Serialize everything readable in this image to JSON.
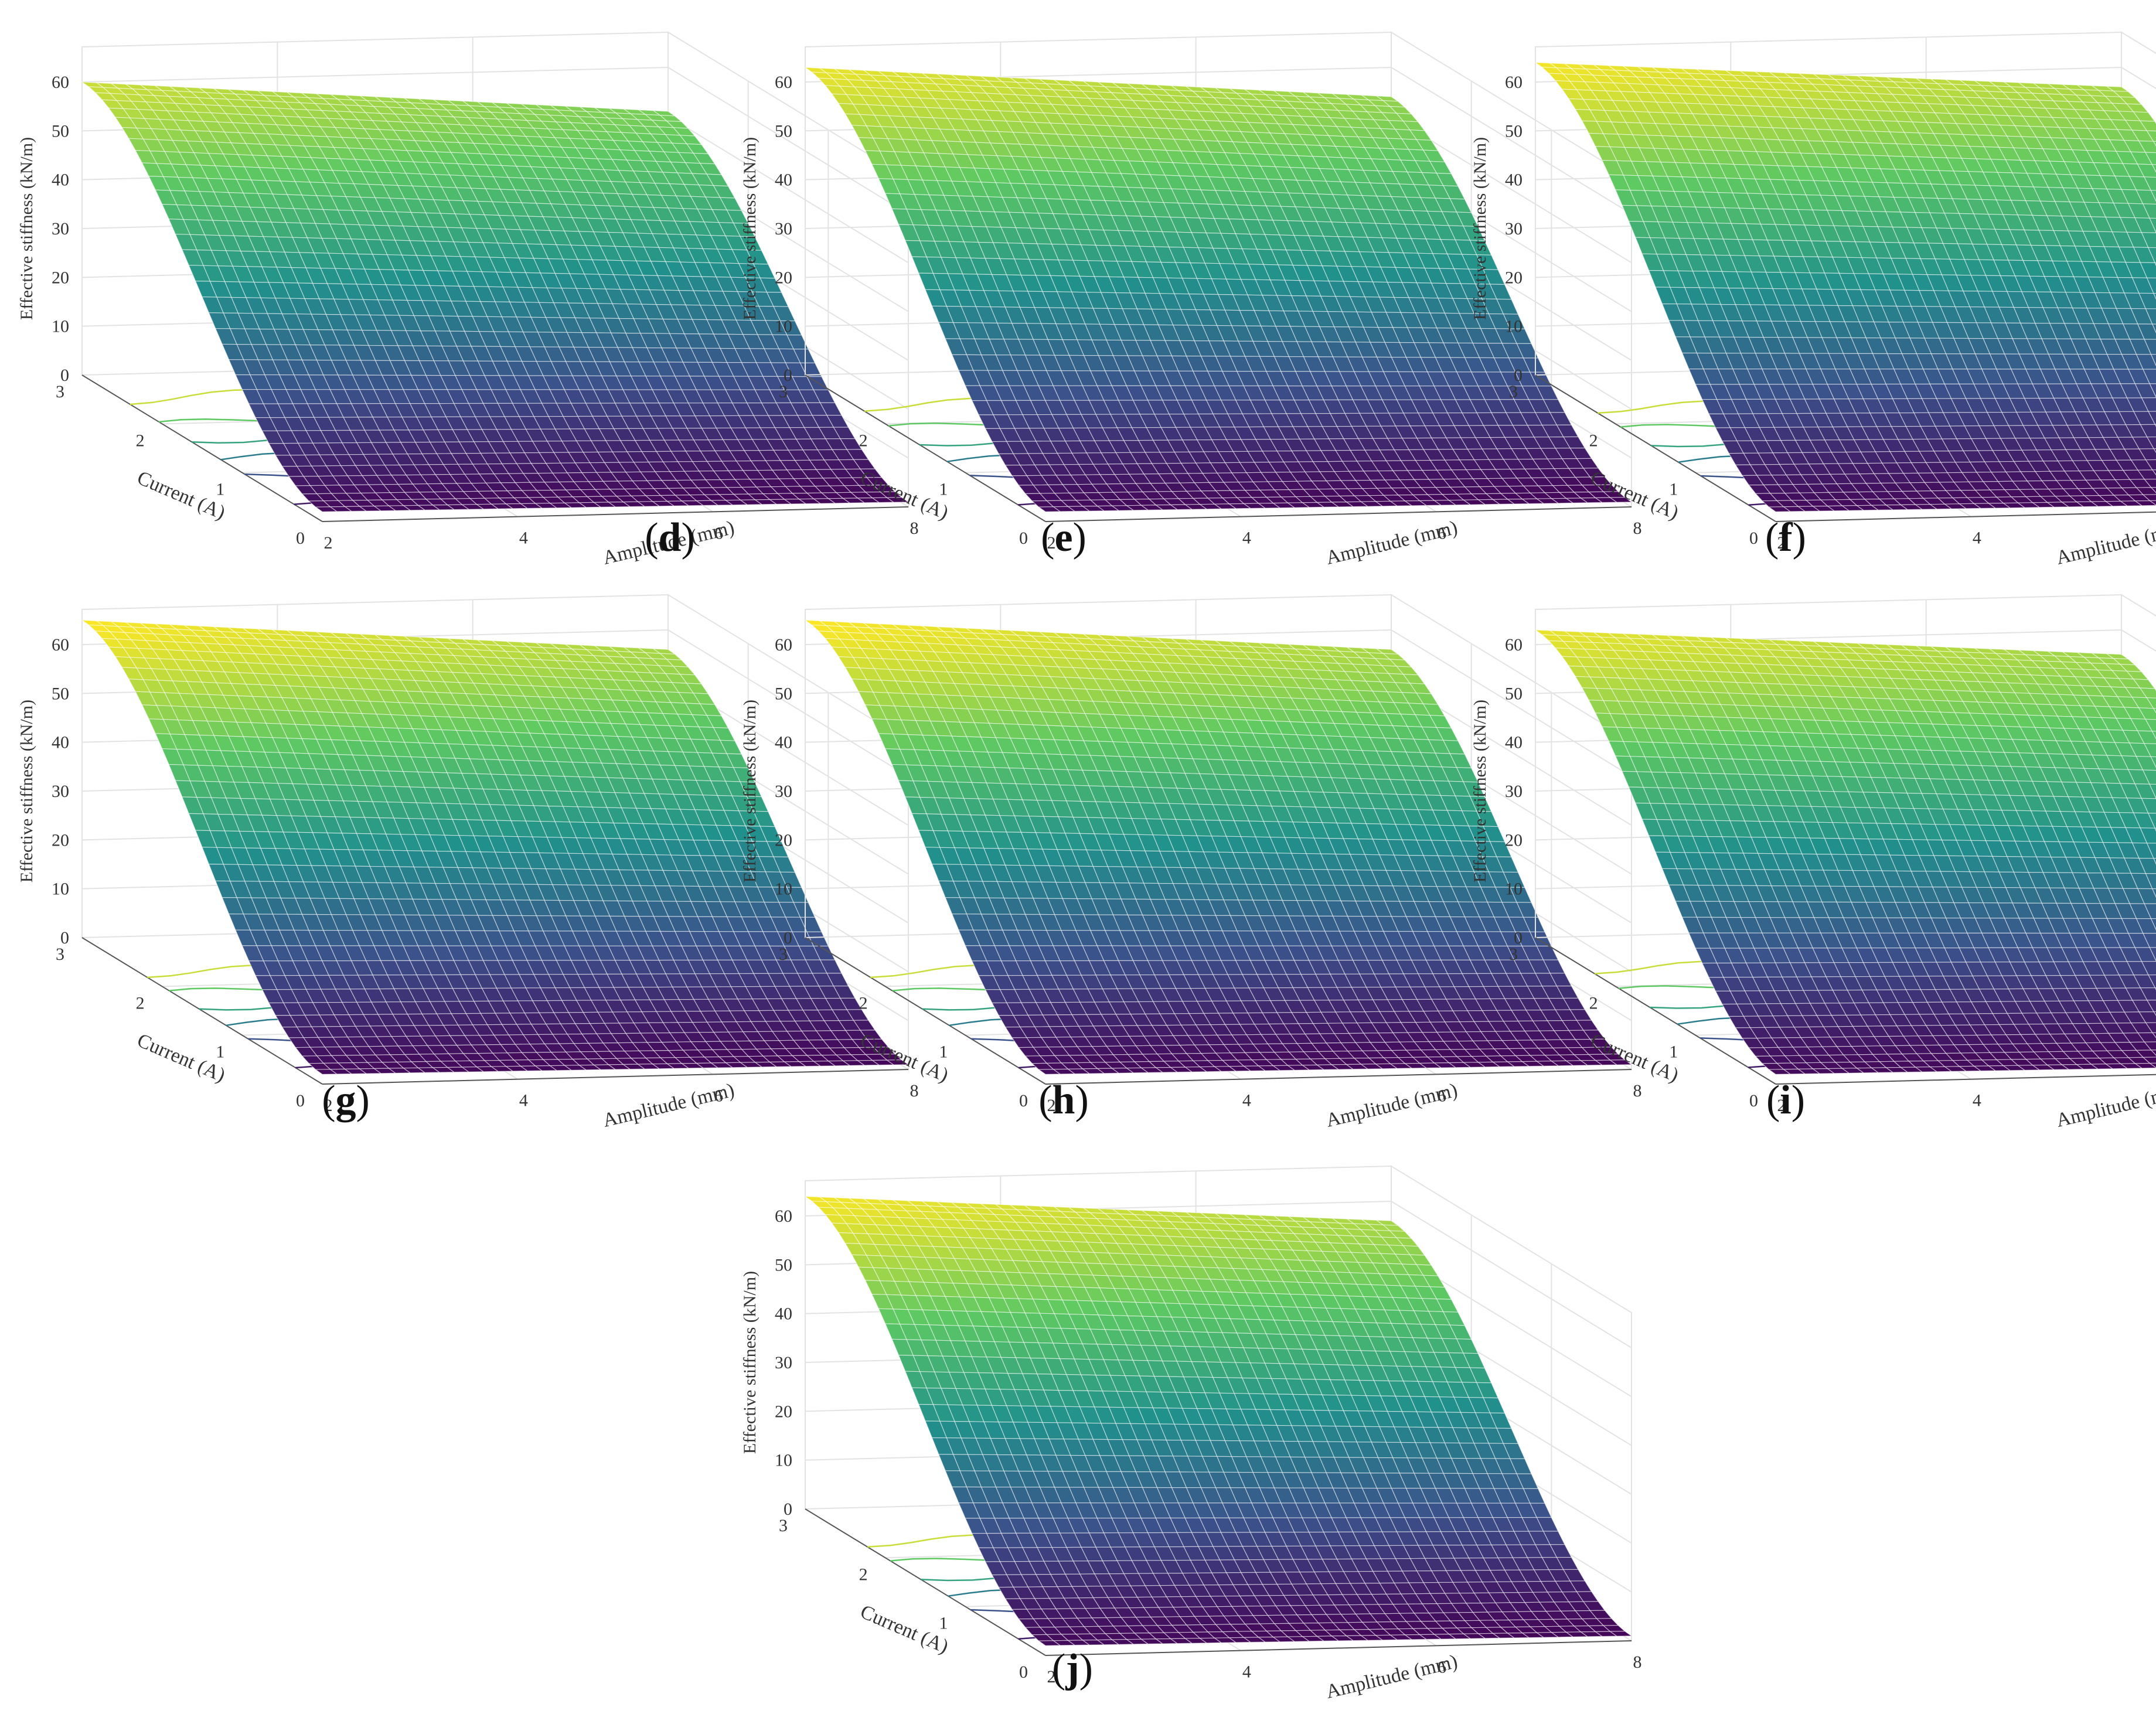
{
  "figure": {
    "panels": [
      {
        "id": "d",
        "panel_label": "d",
        "zmax_tick": 60
      },
      {
        "id": "e",
        "panel_label": "e",
        "zmax_tick": 60
      },
      {
        "id": "f",
        "panel_label": "f",
        "zmax_tick": 60
      },
      {
        "id": "g",
        "panel_label": "g",
        "zmax_tick": 60
      },
      {
        "id": "h",
        "panel_label": "h",
        "zmax_tick": 60
      },
      {
        "id": "i",
        "panel_label": "i",
        "zmax_tick": 60
      },
      {
        "id": "j",
        "panel_label": "j",
        "zmax_tick": 60
      }
    ]
  },
  "chart_data": {
    "type": "surface",
    "xlabel": "Amplitude (mm)",
    "ylabel": "Current (A)",
    "zlabel": "Effective stiffness (kN/m)",
    "xticks": [
      "2",
      "4",
      "6",
      "8"
    ],
    "yticks": [
      "0",
      "1",
      "2",
      "3"
    ],
    "zticks": [
      "0",
      "10",
      "20",
      "30",
      "40",
      "50",
      "60"
    ],
    "xlim": [
      2,
      8
    ],
    "ylim": [
      0,
      3
    ],
    "zlim": [
      0,
      60
    ],
    "grid": true,
    "colormap": [
      "#440154",
      "#3b528b",
      "#21918c",
      "#5ec962",
      "#fde725"
    ],
    "contours_projected_on_floor": true,
    "panels": [
      {
        "id": "d",
        "stiffness_at_corners_kN_per_m": {
          "A2_I3": 60,
          "A8_I3": 51,
          "A2_I0": 2,
          "A8_I0": 1
        }
      },
      {
        "id": "e",
        "stiffness_at_corners_kN_per_m": {
          "A2_I3": 63,
          "A8_I3": 54,
          "A2_I0": 2,
          "A8_I0": 1
        }
      },
      {
        "id": "f",
        "stiffness_at_corners_kN_per_m": {
          "A2_I3": 64,
          "A8_I3": 56,
          "A2_I0": 2,
          "A8_I0": 1
        }
      },
      {
        "id": "g",
        "stiffness_at_corners_kN_per_m": {
          "A2_I3": 65,
          "A8_I3": 56,
          "A2_I0": 2,
          "A8_I0": 1
        }
      },
      {
        "id": "h",
        "stiffness_at_corners_kN_per_m": {
          "A2_I3": 65,
          "A8_I3": 56,
          "A2_I0": 2,
          "A8_I0": 1
        }
      },
      {
        "id": "i",
        "stiffness_at_corners_kN_per_m": {
          "A2_I3": 63,
          "A8_I3": 55,
          "A2_I0": 2,
          "A8_I0": 1
        }
      },
      {
        "id": "j",
        "stiffness_at_corners_kN_per_m": {
          "A2_I3": 64,
          "A8_I3": 56,
          "A2_I0": 2,
          "A8_I0": 1
        }
      }
    ]
  }
}
